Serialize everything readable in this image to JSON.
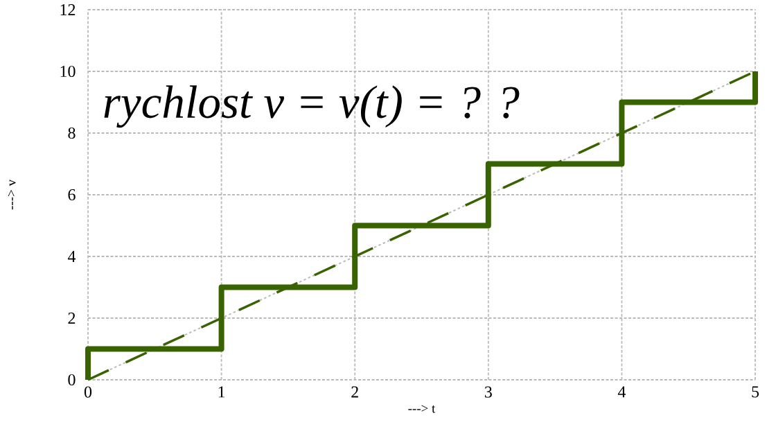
{
  "chart_data": {
    "type": "line",
    "xlabel": "---> t",
    "ylabel": "---> v",
    "annotations": [
      "rychlost v = v(t) = ? ?"
    ],
    "xlim": [
      0,
      5
    ],
    "ylim": [
      0,
      12
    ],
    "xticks": [
      0,
      1,
      2,
      3,
      4,
      5
    ],
    "yticks": [
      0,
      2,
      4,
      6,
      8,
      10,
      12
    ],
    "grid": true,
    "series": [
      {
        "x": [
          0,
          5
        ],
        "values": [
          0,
          10
        ],
        "color": "#bbbbbb",
        "line_style": "dotted"
      },
      {
        "x": [
          0,
          5
        ],
        "values": [
          0,
          10
        ],
        "color": "#386300",
        "line_style": "dashed"
      },
      {
        "x": [
          0,
          0,
          1,
          1,
          2,
          2,
          3,
          3,
          4,
          4,
          5,
          5
        ],
        "values": [
          0,
          1,
          1,
          3,
          3,
          5,
          5,
          7,
          7,
          9,
          9,
          10
        ],
        "color": "#386300",
        "line_style": "solid"
      }
    ]
  }
}
